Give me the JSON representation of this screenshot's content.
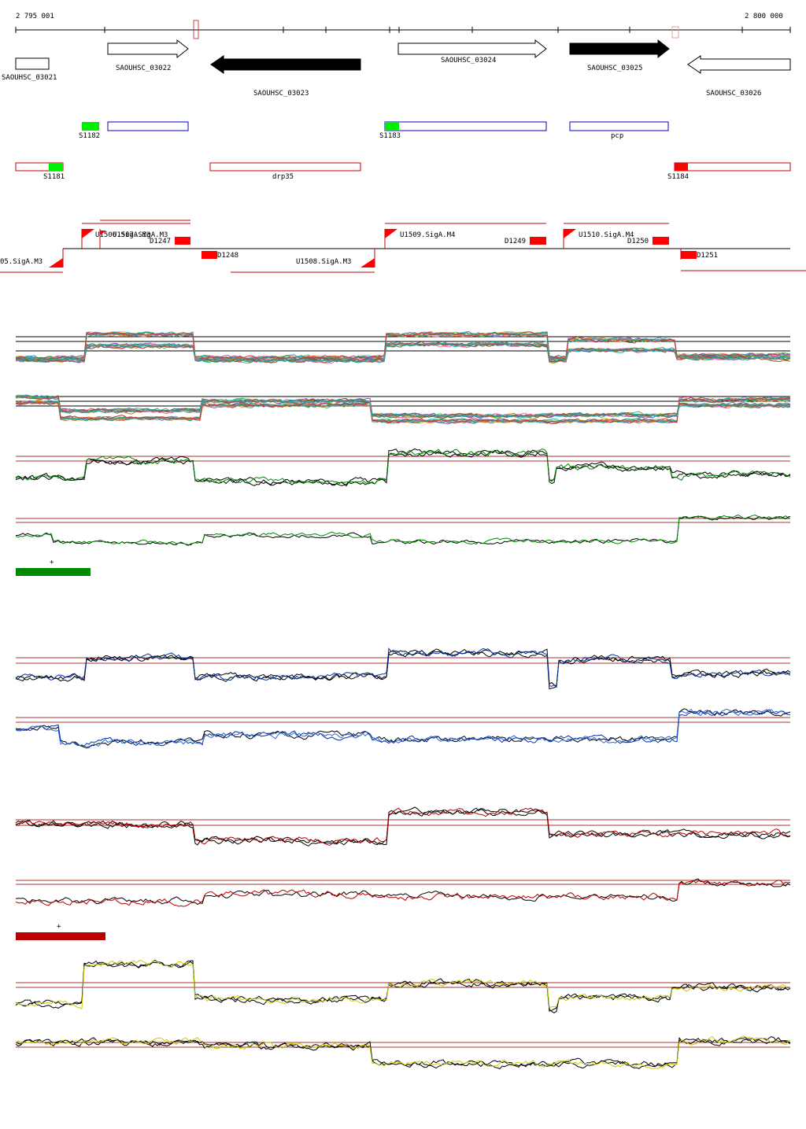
{
  "ruler": {
    "start_label": "2 795 001",
    "end_label": "2 800 000"
  },
  "genes": [
    {
      "label": "SAOUHSC_03021",
      "fill": "white",
      "strand": "+"
    },
    {
      "label": "SAOUHSC_03022",
      "fill": "white",
      "strand": "+"
    },
    {
      "label": "SAOUHSC_03023",
      "fill": "black",
      "strand": "-"
    },
    {
      "label": "SAOUHSC_03024",
      "fill": "white",
      "strand": "+"
    },
    {
      "label": "SAOUHSC_03025",
      "fill": "black",
      "strand": "+"
    },
    {
      "label": "SAOUHSC_03026",
      "fill": "white",
      "strand": "-"
    }
  ],
  "segments_plus": [
    {
      "label": "S1182",
      "color": "#00ee00"
    },
    {
      "label": "S1183",
      "color": "#00ee00"
    },
    {
      "label": "pcp",
      "color": "#0000cc"
    }
  ],
  "segments_minus": [
    {
      "label": "S1181",
      "color": "#00ee00"
    },
    {
      "label": "drp35",
      "color": "#cc0000"
    },
    {
      "label": "S1184",
      "color": "#ff0000"
    }
  ],
  "promoters": [
    {
      "label": "U1506.SigA.M3"
    },
    {
      "label": "U1507.SigA.M3"
    },
    {
      "label": "D1247"
    },
    {
      "label": "U1509.SigA.M4"
    },
    {
      "label": "D1249"
    },
    {
      "label": "U1510.SigA.M4"
    },
    {
      "label": "D1250"
    },
    {
      "label": "05.SigA.M3"
    },
    {
      "label": "D1248"
    },
    {
      "label": "U1508.SigA.M3"
    },
    {
      "label": "D1251"
    }
  ],
  "condition_markers": [
    {
      "label": "+",
      "color": "#008800"
    },
    {
      "label": "+",
      "color": "#bb0000"
    }
  ],
  "track_colors": {
    "green": "#008800",
    "blue": "#0033aa",
    "red": "#bb0000",
    "yellow": "#cccc00",
    "threshold": "#aa3333"
  }
}
